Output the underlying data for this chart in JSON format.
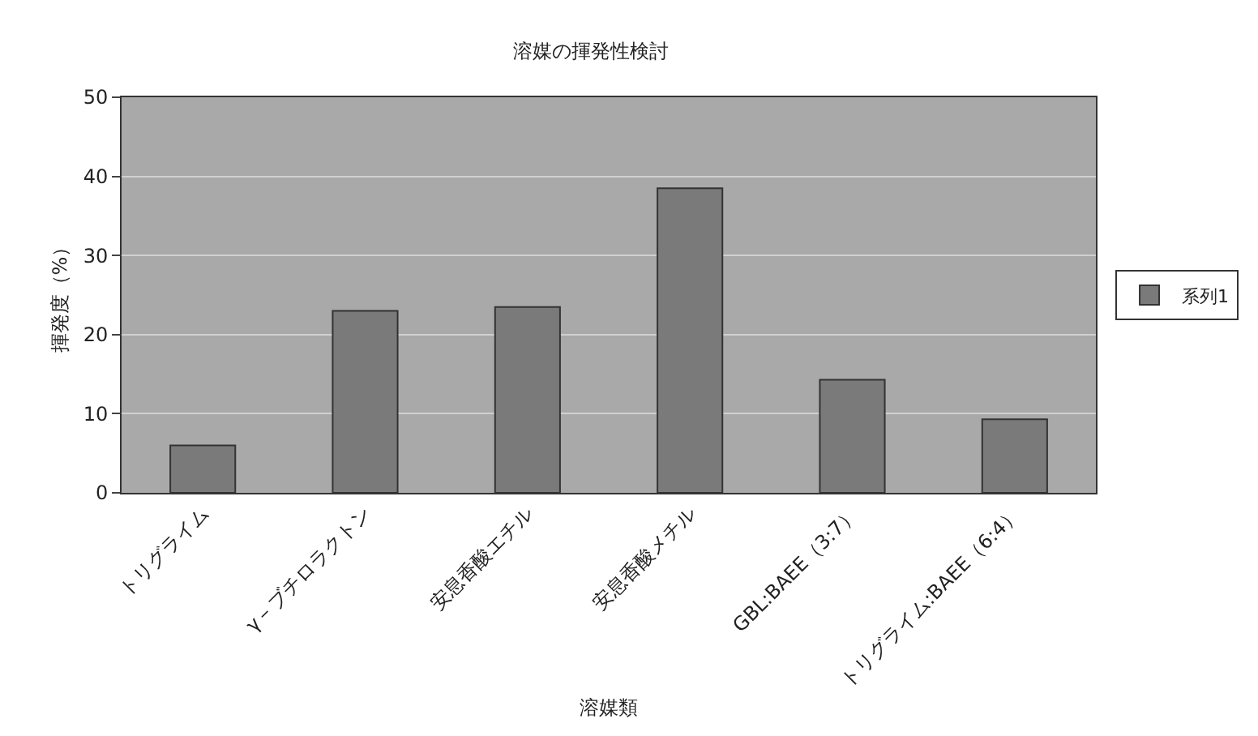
{
  "chart_data": {
    "type": "bar",
    "title": "溶媒の揮発性検討",
    "xlabel": "溶媒類",
    "ylabel": "揮発度（%）",
    "categories": [
      "トリグライム",
      "γ－ブチロラクトン",
      "安息香酸エチル",
      "安息香酸メチル",
      "GBL:BAEE（3:7）",
      "トリグライム:BAEE（6:4）"
    ],
    "series": [
      {
        "name": "系列1",
        "color": "#7a7a7a",
        "values": [
          6,
          23,
          23.5,
          38.5,
          14.3,
          9.3
        ]
      }
    ],
    "ylim": [
      0,
      50
    ],
    "yticks": [
      0,
      10,
      20,
      30,
      40,
      50
    ],
    "grid": "y",
    "legend": "right"
  }
}
